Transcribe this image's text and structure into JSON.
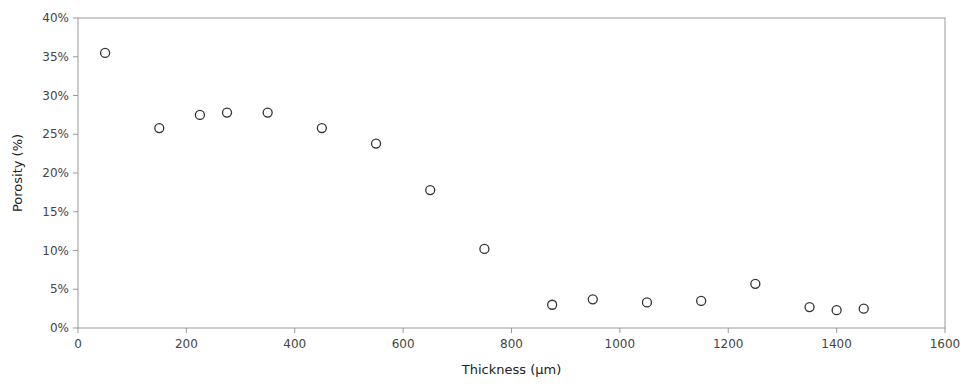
{
  "chart_data": {
    "type": "scatter",
    "x": [
      50,
      150,
      225,
      275,
      350,
      450,
      550,
      650,
      750,
      875,
      950,
      1050,
      1150,
      1250,
      1350,
      1400,
      1450
    ],
    "y": [
      0.355,
      0.258,
      0.275,
      0.278,
      0.278,
      0.258,
      0.238,
      0.178,
      0.102,
      0.03,
      0.037,
      0.033,
      0.035,
      0.057,
      0.027,
      0.023,
      0.025
    ],
    "x_label": "Thickness (μm)",
    "y_label": "Porosity (%)",
    "xlim": [
      0,
      1600
    ],
    "ylim": [
      0,
      0.4
    ],
    "xticks": [
      0,
      200,
      400,
      600,
      800,
      1000,
      1200,
      1400,
      1600
    ],
    "yticks": [
      {
        "value": 0.0,
        "label": "0%"
      },
      {
        "value": 0.05,
        "label": "5%"
      },
      {
        "value": 0.1,
        "label": "10%"
      },
      {
        "value": 0.15,
        "label": "15%"
      },
      {
        "value": 0.2,
        "label": "20%"
      },
      {
        "value": 0.25,
        "label": "25%"
      },
      {
        "value": 0.3,
        "label": "30%"
      },
      {
        "value": 0.35,
        "label": "35%"
      },
      {
        "value": 0.4,
        "label": "40%"
      }
    ],
    "marker": "circle",
    "color": "#333333",
    "grid": false
  }
}
